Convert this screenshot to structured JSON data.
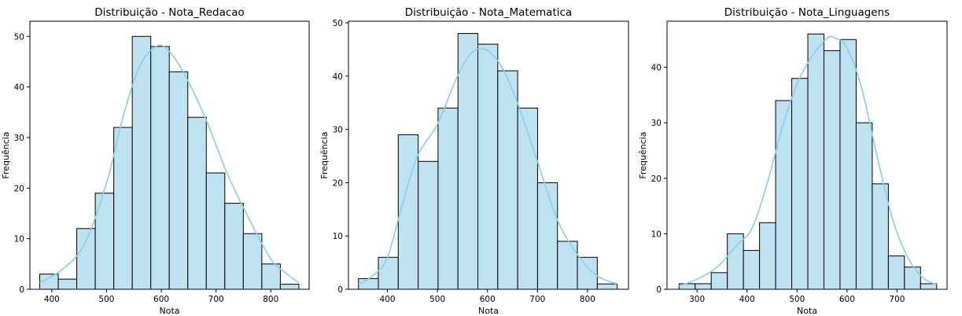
{
  "colors": {
    "bar_fill": "#bfe2f0",
    "bar_edge": "#000000",
    "kde": "#87ceeb"
  },
  "chart_data": [
    {
      "type": "bar",
      "title": "Distribuição - Nota_Redacao",
      "xlabel": "Nota",
      "ylabel": "Frequência",
      "xlim": [
        360,
        870
      ],
      "ylim": [
        0,
        53
      ],
      "xticks": [
        400,
        500,
        600,
        700,
        800
      ],
      "yticks": [
        0,
        10,
        20,
        30,
        40,
        50
      ],
      "bin_edges": [
        378,
        411.8,
        445.6,
        479.4,
        513.2,
        547,
        580.8,
        614.6,
        648.4,
        682.2,
        716,
        749.8,
        783.6,
        817.4,
        851.2
      ],
      "values": [
        3,
        2,
        12,
        19,
        32,
        50,
        48,
        43,
        34,
        23,
        17,
        11,
        5,
        1
      ],
      "kde": {
        "x": [
          378,
          420,
          460,
          500,
          530,
          560,
          590,
          610,
          640,
          680,
          720,
          760,
          800,
          830,
          851
        ],
        "y": [
          1.3,
          4,
          9,
          21,
          34,
          44,
          48,
          47.5,
          43,
          34,
          23,
          14,
          6,
          3,
          1.3
        ]
      }
    },
    {
      "type": "bar",
      "title": "Distribuição - Nota_Matematica",
      "xlabel": "Nota",
      "ylabel": "Frequência",
      "xlim": [
        322,
        882
      ],
      "ylim": [
        0,
        50.3
      ],
      "xticks": [
        400,
        500,
        600,
        700,
        800
      ],
      "yticks": [
        0,
        10,
        20,
        30,
        40,
        50
      ],
      "bin_edges": [
        342,
        381.8,
        421.6,
        461.4,
        501.2,
        541,
        580.8,
        620.6,
        660.4,
        700.2,
        740,
        779.8,
        819.6,
        859.4
      ],
      "values": [
        2,
        6,
        29,
        24,
        34,
        48,
        46,
        41,
        34,
        20,
        9,
        6,
        1
      ],
      "kde": {
        "x": [
          342,
          370,
          400,
          430,
          460,
          500,
          540,
          570,
          600,
          630,
          660,
          700,
          740,
          780,
          820,
          859
        ],
        "y": [
          1,
          2.5,
          6,
          16,
          25,
          31,
          40,
          44.5,
          44.8,
          41.5,
          35,
          24,
          13,
          6.5,
          2.5,
          1
        ]
      }
    },
    {
      "type": "bar",
      "title": "Distribuição - Nota_Linguagens",
      "xlabel": "Nota",
      "ylabel": "Frequência",
      "xlim": [
        240,
        800
      ],
      "ylim": [
        0,
        48.3
      ],
      "xticks": [
        300,
        400,
        500,
        600,
        700
      ],
      "yticks": [
        0,
        10,
        20,
        30,
        40
      ],
      "bin_edges": [
        264,
        296.2,
        328.4,
        360.6,
        392.8,
        425,
        457.2,
        489.4,
        521.6,
        553.8,
        586,
        618.2,
        650.4,
        682.6,
        714.8,
        747,
        779.2
      ],
      "values": [
        1,
        1,
        3,
        10,
        7,
        12,
        34,
        38,
        46,
        43,
        45,
        30,
        19,
        6,
        4,
        1
      ],
      "kde": {
        "x": [
          264,
          300,
          340,
          380,
          410,
          440,
          470,
          500,
          530,
          560,
          575,
          600,
          630,
          660,
          690,
          720,
          750,
          779
        ],
        "y": [
          0.6,
          1.8,
          4,
          8,
          11,
          19,
          29,
          37,
          42,
          45.2,
          45.3,
          43.5,
          36,
          24,
          13,
          6,
          2.2,
          0.8
        ]
      }
    }
  ]
}
